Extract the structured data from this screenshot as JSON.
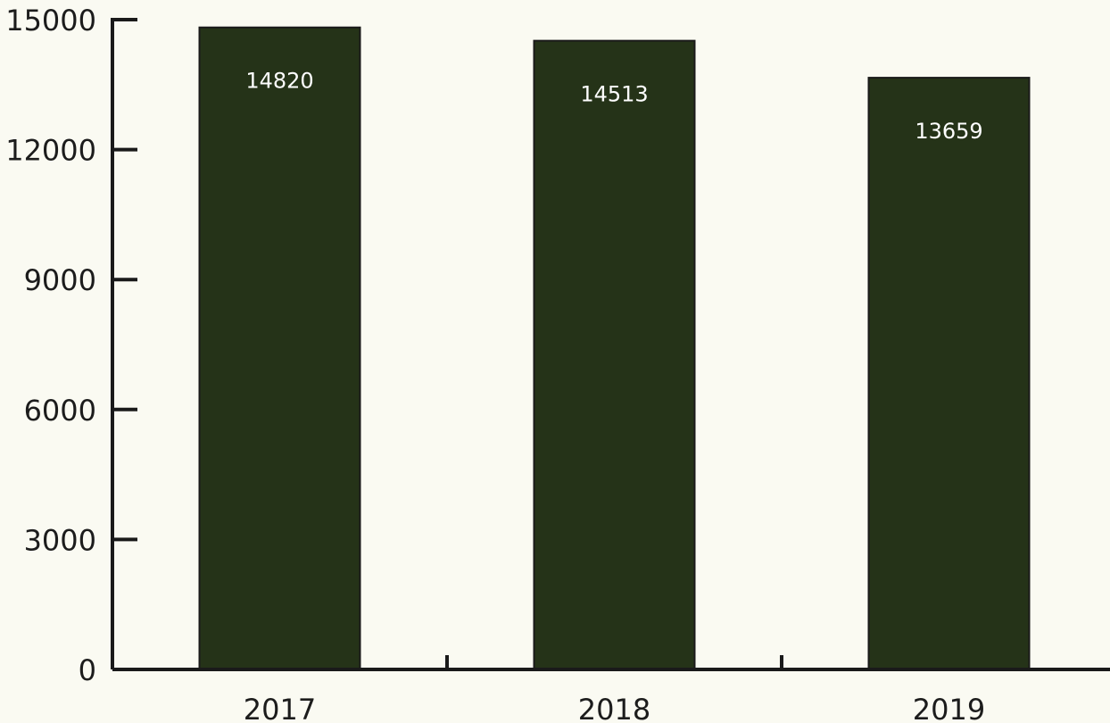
{
  "chart_data": {
    "type": "bar",
    "categories": [
      "2017",
      "2018",
      "2019"
    ],
    "values": [
      14820,
      14513,
      13659
    ],
    "data_labels": [
      "14820",
      "14513",
      "13659"
    ],
    "title": "",
    "xlabel": "",
    "ylabel": "",
    "ylim": [
      0,
      15000
    ],
    "yticks": [
      0,
      3000,
      6000,
      9000,
      12000,
      15000
    ],
    "ytick_labels": [
      "0",
      "3000",
      "6000",
      "9000",
      "12000",
      "15000"
    ],
    "grid": false,
    "legend": "none",
    "colors": {
      "bar": "#253318",
      "bar_edge": "#1a1a1a",
      "axis": "#1a1a1a",
      "background": "#fafaf2",
      "data_label": "#ffffff"
    }
  }
}
